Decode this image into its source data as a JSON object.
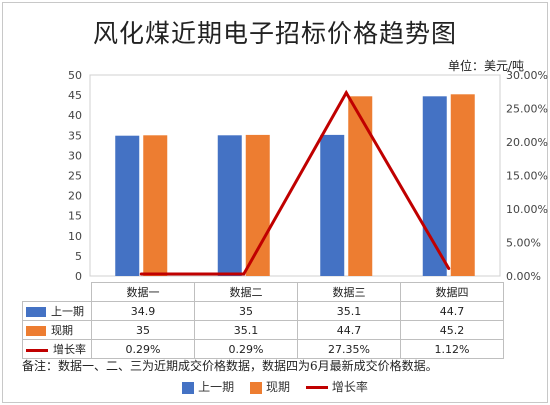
{
  "title": "风化煤近期电子招标价格趋势图",
  "unit": "单位：美元/吨",
  "note": "备注：数据一、二、三为近期成交价格数据，数据四为6月最新成交价格数据。",
  "colors": {
    "previous": "#4472C4",
    "current": "#ED7D31",
    "growth": "#C00000"
  },
  "chart_data": {
    "type": "bar",
    "categories": [
      "数据一",
      "数据二",
      "数据三",
      "数据四"
    ],
    "series": [
      {
        "name": "上一期",
        "type": "bar",
        "axis": "left",
        "values": [
          34.9,
          35,
          35.1,
          44.7
        ],
        "labels": [
          "34.9",
          "35",
          "35.1",
          "44.7"
        ]
      },
      {
        "name": "现期",
        "type": "bar",
        "axis": "left",
        "values": [
          35,
          35.1,
          44.7,
          45.2
        ],
        "labels": [
          "35",
          "35.1",
          "44.7",
          "45.2"
        ]
      },
      {
        "name": "增长率",
        "type": "line",
        "axis": "right",
        "values": [
          0.29,
          0.29,
          27.35,
          1.12
        ],
        "labels": [
          "0.29%",
          "0.29%",
          "27.35%",
          "1.12%"
        ]
      }
    ],
    "y_left": {
      "min": 0,
      "max": 50,
      "ticks": [
        "0",
        "5",
        "10",
        "15",
        "20",
        "25",
        "30",
        "35",
        "40",
        "45",
        "50"
      ]
    },
    "y_right": {
      "min": 0,
      "max": 30,
      "ticks": [
        "0.00%",
        "5.00%",
        "10.00%",
        "15.00%",
        "20.00%",
        "25.00%",
        "30.00%"
      ]
    },
    "grid": false,
    "legend_position": "bottom",
    "data_table": true
  }
}
